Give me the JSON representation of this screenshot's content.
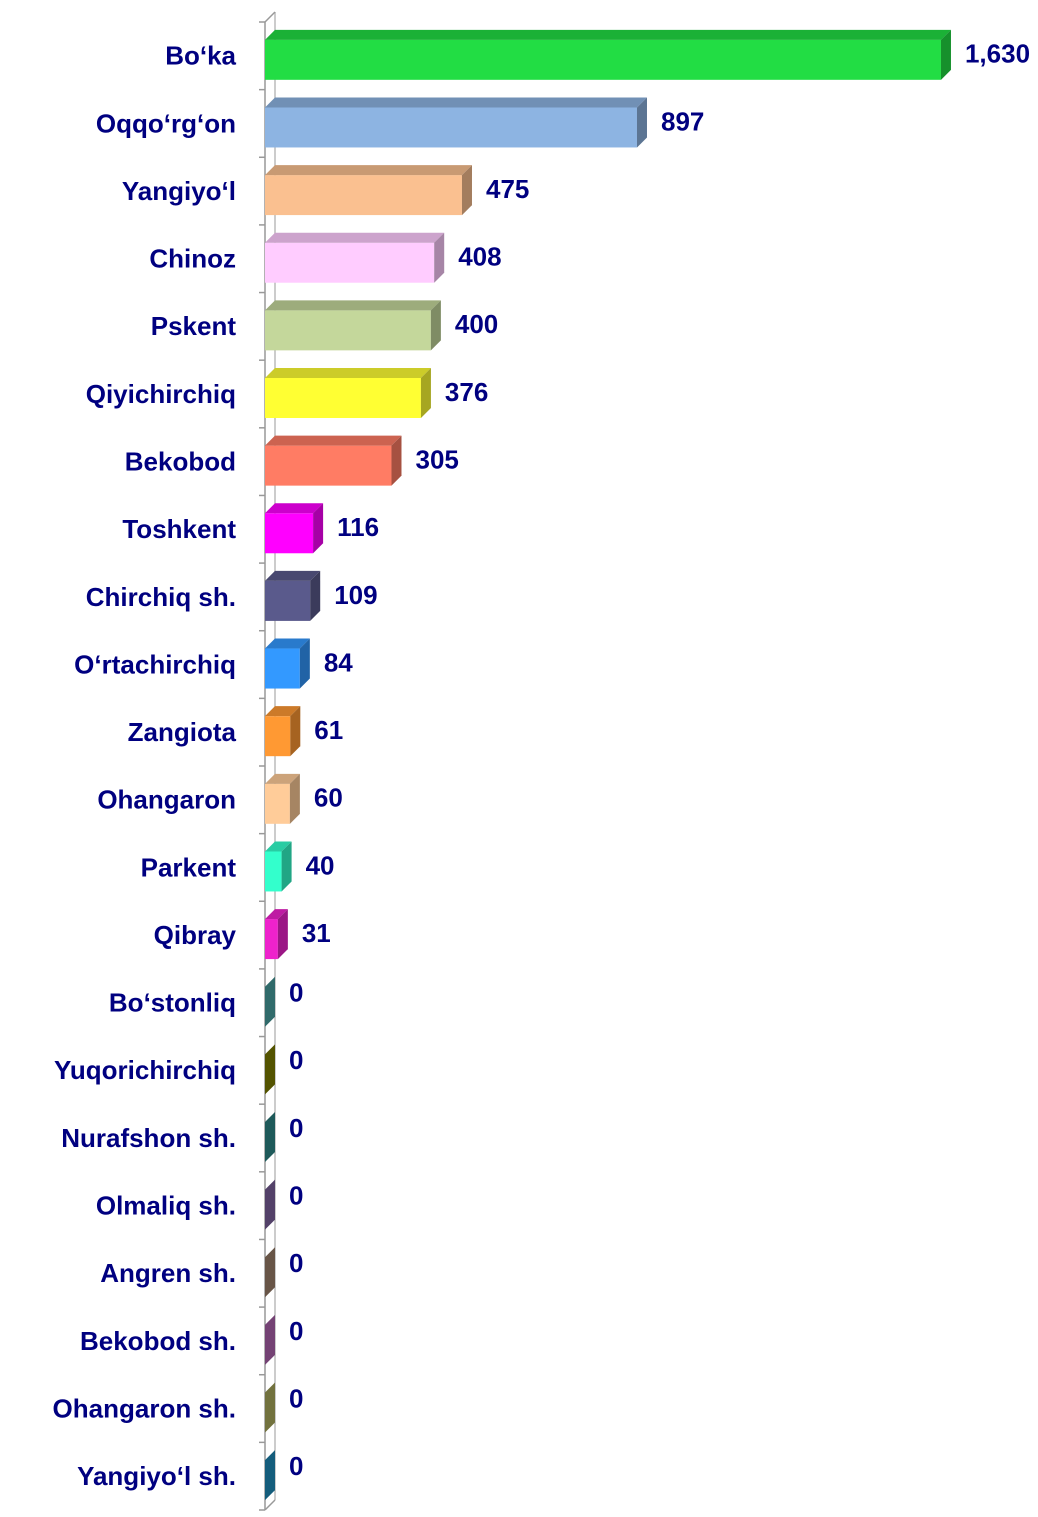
{
  "chart_data": {
    "type": "bar",
    "orientation": "horizontal",
    "categories": [
      "Bo‘ka",
      "Oqqo‘rg‘on",
      "Yangiyo‘l",
      "Chinoz",
      "Pskent",
      "Qiyichirchiq",
      "Bekobod",
      "Toshkent",
      "Chirchiq sh.",
      "O‘rtachirchiq",
      "Zangiota",
      "Ohangaron",
      "Parkent",
      "Qibray",
      "Bo‘stonliq",
      "Yuqorichirchiq",
      "Nurafshon sh.",
      "Olmaliq sh.",
      "Angren sh.",
      "Bekobod sh.",
      "Ohangaron sh.",
      "Yangiyo‘l sh."
    ],
    "values": [
      1630,
      897,
      475,
      408,
      400,
      376,
      305,
      116,
      109,
      84,
      61,
      60,
      40,
      31,
      0,
      0,
      0,
      0,
      0,
      0,
      0,
      0
    ],
    "value_labels": [
      "1,630",
      "897",
      "475",
      "408",
      "400",
      "376",
      "305",
      "116",
      "109",
      "84",
      "61",
      "60",
      "40",
      "31",
      "0",
      "0",
      "0",
      "0",
      "0",
      "0",
      "0",
      "0"
    ],
    "colors": [
      "#22dd44",
      "#8db4e2",
      "#fac090",
      "#ffccff",
      "#c4d79b",
      "#ffff33",
      "#ff7c64",
      "#ff00ff",
      "#5a5a8c",
      "#3399ff",
      "#ff9933",
      "#ffcc99",
      "#33ffcc",
      "#ee22cc",
      "#4aa3a3",
      "#808000",
      "#2e8b8b",
      "#8064a2",
      "#a0826d",
      "#b366b3",
      "#b0b060",
      "#1f8fbf"
    ],
    "xlim": [
      0,
      1700
    ]
  }
}
